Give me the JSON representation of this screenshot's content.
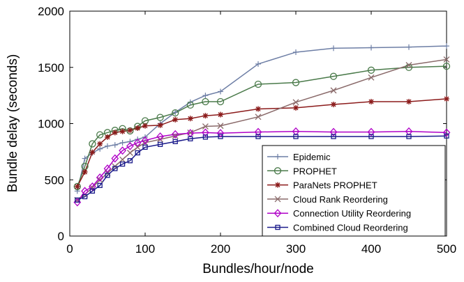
{
  "chart_data": {
    "type": "line",
    "title": "",
    "xlabel": "Bundles/hour/node",
    "ylabel": "Bundle delay (seconds)",
    "xlim": [
      0,
      500
    ],
    "ylim": [
      0,
      2000
    ],
    "xticks": [
      0,
      100,
      200,
      300,
      400,
      500
    ],
    "yticks": [
      0,
      500,
      1000,
      1500,
      2000
    ],
    "grid": false,
    "legend_position": "bottom-right",
    "series": [
      {
        "name": "Epidemic",
        "color": "#6d7ea5",
        "marker": "plus",
        "x": [
          10,
          20,
          30,
          40,
          50,
          60,
          70,
          80,
          90,
          100,
          120,
          140,
          160,
          180,
          200,
          250,
          300,
          350,
          400,
          450,
          500
        ],
        "y": [
          400,
          690,
          740,
          775,
          800,
          810,
          830,
          840,
          860,
          880,
          1000,
          1100,
          1190,
          1250,
          1285,
          1530,
          1635,
          1670,
          1675,
          1680,
          1690
        ]
      },
      {
        "name": "PROPHET",
        "color": "#4a7a4a",
        "marker": "circle",
        "x": [
          10,
          20,
          30,
          40,
          50,
          60,
          70,
          80,
          90,
          100,
          120,
          140,
          160,
          180,
          200,
          250,
          300,
          350,
          400,
          450,
          500
        ],
        "y": [
          440,
          620,
          820,
          900,
          920,
          940,
          955,
          935,
          975,
          1025,
          1055,
          1095,
          1165,
          1195,
          1195,
          1350,
          1365,
          1420,
          1475,
          1500,
          1510
        ]
      },
      {
        "name": "ParaNets PROPHET",
        "color": "#8b1a1a",
        "marker": "star",
        "x": [
          10,
          20,
          30,
          40,
          50,
          60,
          70,
          80,
          90,
          100,
          120,
          140,
          160,
          180,
          200,
          250,
          300,
          350,
          400,
          450,
          500
        ],
        "y": [
          440,
          570,
          745,
          820,
          880,
          920,
          930,
          940,
          960,
          980,
          985,
          1035,
          1045,
          1070,
          1080,
          1130,
          1140,
          1170,
          1195,
          1195,
          1220
        ]
      },
      {
        "name": "Cloud Rank Reordering",
        "color": "#8a6a6a",
        "marker": "x",
        "x": [
          10,
          20,
          30,
          40,
          50,
          60,
          70,
          80,
          90,
          100,
          120,
          140,
          160,
          180,
          200,
          250,
          300,
          350,
          400,
          450,
          500
        ],
        "y": [
          320,
          370,
          430,
          500,
          560,
          620,
          680,
          740,
          790,
          830,
          860,
          890,
          920,
          975,
          980,
          1060,
          1190,
          1295,
          1410,
          1520,
          1570
        ]
      },
      {
        "name": "Connection Utility Reordering",
        "color": "#b000c8",
        "marker": "diamond",
        "x": [
          10,
          20,
          30,
          40,
          50,
          60,
          70,
          80,
          90,
          100,
          120,
          140,
          160,
          180,
          200,
          250,
          300,
          350,
          400,
          450,
          500
        ],
        "y": [
          300,
          400,
          440,
          520,
          600,
          690,
          760,
          800,
          830,
          850,
          885,
          905,
          915,
          920,
          915,
          925,
          930,
          925,
          925,
          930,
          920
        ]
      },
      {
        "name": "Combined Cloud Reordering",
        "color": "#1a1a8a",
        "marker": "square",
        "x": [
          10,
          20,
          30,
          40,
          50,
          60,
          70,
          80,
          90,
          100,
          120,
          140,
          160,
          180,
          200,
          250,
          300,
          350,
          400,
          450,
          500
        ],
        "y": [
          320,
          350,
          400,
          450,
          540,
          600,
          640,
          670,
          740,
          790,
          815,
          840,
          865,
          880,
          885,
          885,
          885,
          885,
          885,
          885,
          890
        ]
      }
    ]
  }
}
